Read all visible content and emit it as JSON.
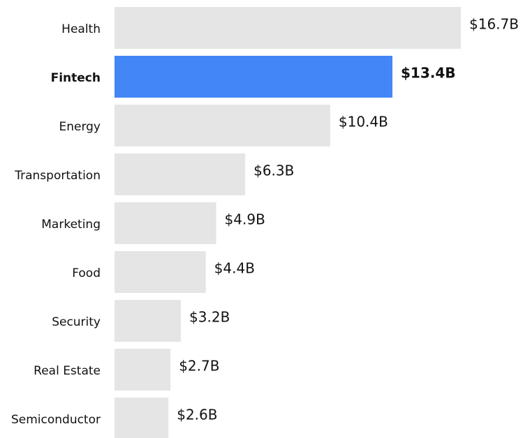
{
  "chart_data": {
    "type": "bar",
    "orientation": "horizontal",
    "categories": [
      "Health",
      "Fintech",
      "Energy",
      "Transportation",
      "Marketing",
      "Food",
      "Security",
      "Real Estate",
      "Semiconductor"
    ],
    "values": [
      16.7,
      13.4,
      10.4,
      6.3,
      4.9,
      4.4,
      3.2,
      2.7,
      2.6
    ],
    "value_labels": [
      "$16.7B",
      "$13.4B",
      "$10.4B",
      "$6.3B",
      "$4.9B",
      "$4.4B",
      "$3.2B",
      "$2.7B",
      "$2.6B"
    ],
    "colors": [
      "#e5e5e5",
      "#4287f5",
      "#e5e5e5",
      "#e5e5e5",
      "#e5e5e5",
      "#e5e5e5",
      "#e5e5e5",
      "#e5e5e5",
      "#e5e5e5"
    ],
    "bold": [
      false,
      true,
      false,
      false,
      false,
      false,
      false,
      false,
      false
    ]
  }
}
